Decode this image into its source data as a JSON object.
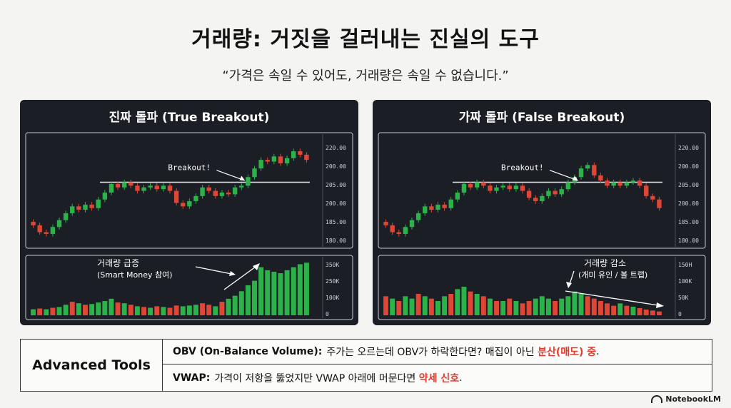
{
  "title": "거래량: 거짓을 걸러내는 진실의 도구",
  "quote": "“가격은 속일 수 있어도, 거래량은 속일 수 없습니다.”",
  "colors": {
    "up": "#2bb34a",
    "down": "#e04636",
    "panel_bg": "#1b1e25",
    "accent_text": "#e23b2e"
  },
  "chart_data": [
    {
      "type": "candlestick",
      "title": "진짜 돌파 (True Breakout)",
      "price_ticks": [
        "220.00",
        "200.00",
        "205.00",
        "200.00",
        "185.00",
        "180.00"
      ],
      "volume_ticks": [
        "350K",
        "250K",
        "100K",
        "0"
      ],
      "resistance_label": "Breakout!",
      "volume_annotation": [
        "거래량 급증",
        "(Smart Money 참여)"
      ],
      "candles": [
        [
          178,
          176
        ],
        [
          176,
          172
        ],
        [
          172,
          171
        ],
        [
          171,
          175
        ],
        [
          175,
          179
        ],
        [
          179,
          183
        ],
        [
          183,
          187
        ],
        [
          187,
          185
        ],
        [
          185,
          188
        ],
        [
          188,
          186
        ],
        [
          186,
          191
        ],
        [
          191,
          195
        ],
        [
          195,
          200
        ],
        [
          200,
          198
        ],
        [
          198,
          201
        ],
        [
          201,
          199
        ],
        [
          199,
          196
        ],
        [
          196,
          198
        ],
        [
          198,
          199
        ],
        [
          199,
          197
        ],
        [
          197,
          199
        ],
        [
          199,
          196
        ],
        [
          196,
          189
        ],
        [
          189,
          187
        ],
        [
          187,
          190
        ],
        [
          190,
          193
        ],
        [
          193,
          198
        ],
        [
          198,
          196
        ],
        [
          196,
          193
        ],
        [
          193,
          195
        ],
        [
          195,
          194
        ],
        [
          194,
          198
        ],
        [
          198,
          199
        ],
        [
          199,
          204
        ],
        [
          204,
          209
        ],
        [
          209,
          214
        ],
        [
          214,
          213
        ],
        [
          213,
          216
        ],
        [
          216,
          212
        ],
        [
          212,
          215
        ],
        [
          215,
          219
        ],
        [
          219,
          217
        ],
        [
          217,
          214
        ]
      ],
      "volumes": [
        [
          40,
          "up"
        ],
        [
          45,
          "down"
        ],
        [
          40,
          "up"
        ],
        [
          50,
          "down"
        ],
        [
          55,
          "up"
        ],
        [
          70,
          "up"
        ],
        [
          90,
          "down"
        ],
        [
          80,
          "up"
        ],
        [
          70,
          "down"
        ],
        [
          75,
          "up"
        ],
        [
          85,
          "up"
        ],
        [
          95,
          "up"
        ],
        [
          110,
          "up"
        ],
        [
          85,
          "down"
        ],
        [
          80,
          "up"
        ],
        [
          70,
          "down"
        ],
        [
          60,
          "up"
        ],
        [
          55,
          "down"
        ],
        [
          50,
          "up"
        ],
        [
          60,
          "down"
        ],
        [
          55,
          "up"
        ],
        [
          50,
          "down"
        ],
        [
          65,
          "down"
        ],
        [
          60,
          "up"
        ],
        [
          65,
          "up"
        ],
        [
          70,
          "up"
        ],
        [
          80,
          "down"
        ],
        [
          70,
          "down"
        ],
        [
          60,
          "up"
        ],
        [
          90,
          "down"
        ],
        [
          110,
          "up"
        ],
        [
          130,
          "up"
        ],
        [
          160,
          "up"
        ],
        [
          200,
          "up"
        ],
        [
          230,
          "up"
        ],
        [
          320,
          "up"
        ],
        [
          300,
          "up"
        ],
        [
          290,
          "up"
        ],
        [
          280,
          "up"
        ],
        [
          300,
          "up"
        ],
        [
          320,
          "up"
        ],
        [
          340,
          "up"
        ],
        [
          350,
          "up"
        ]
      ],
      "volume_trend": "up"
    },
    {
      "type": "candlestick",
      "title": "가짜 돌파 (False Breakout)",
      "price_ticks": [
        "220.00",
        "200.00",
        "205.00",
        "200.00",
        "185.00",
        "180.00"
      ],
      "volume_ticks": [
        "150H",
        "100K",
        "50K",
        "0"
      ],
      "resistance_label": "Breakout!",
      "volume_annotation": [
        "거래량 감소",
        "(개미 유인 / 볼 트랩)"
      ],
      "candles": [
        [
          178,
          176
        ],
        [
          176,
          172
        ],
        [
          172,
          171
        ],
        [
          171,
          175
        ],
        [
          175,
          179
        ],
        [
          179,
          183
        ],
        [
          183,
          187
        ],
        [
          187,
          185
        ],
        [
          185,
          188
        ],
        [
          188,
          186
        ],
        [
          186,
          191
        ],
        [
          191,
          195
        ],
        [
          195,
          200
        ],
        [
          200,
          198
        ],
        [
          198,
          201
        ],
        [
          201,
          199
        ],
        [
          199,
          196
        ],
        [
          196,
          198
        ],
        [
          198,
          199
        ],
        [
          199,
          197
        ],
        [
          197,
          199
        ],
        [
          199,
          196
        ],
        [
          196,
          192
        ],
        [
          192,
          190
        ],
        [
          190,
          193
        ],
        [
          193,
          196
        ],
        [
          196,
          194
        ],
        [
          194,
          197
        ],
        [
          197,
          201
        ],
        [
          201,
          204
        ],
        [
          204,
          209
        ],
        [
          209,
          211
        ],
        [
          211,
          205
        ],
        [
          205,
          202
        ],
        [
          202,
          199
        ],
        [
          199,
          201
        ],
        [
          201,
          199
        ],
        [
          199,
          201
        ],
        [
          201,
          202
        ],
        [
          202,
          199
        ],
        [
          199,
          193
        ],
        [
          193,
          191
        ],
        [
          191,
          186
        ]
      ],
      "volumes": [
        [
          40,
          "down"
        ],
        [
          35,
          "up"
        ],
        [
          30,
          "down"
        ],
        [
          40,
          "up"
        ],
        [
          35,
          "up"
        ],
        [
          45,
          "down"
        ],
        [
          40,
          "up"
        ],
        [
          35,
          "down"
        ],
        [
          30,
          "up"
        ],
        [
          40,
          "up"
        ],
        [
          45,
          "down"
        ],
        [
          55,
          "up"
        ],
        [
          60,
          "up"
        ],
        [
          50,
          "down"
        ],
        [
          45,
          "up"
        ],
        [
          40,
          "down"
        ],
        [
          35,
          "up"
        ],
        [
          30,
          "down"
        ],
        [
          30,
          "up"
        ],
        [
          35,
          "down"
        ],
        [
          30,
          "up"
        ],
        [
          25,
          "down"
        ],
        [
          30,
          "down"
        ],
        [
          35,
          "up"
        ],
        [
          40,
          "up"
        ],
        [
          35,
          "up"
        ],
        [
          30,
          "down"
        ],
        [
          35,
          "up"
        ],
        [
          40,
          "up"
        ],
        [
          50,
          "up"
        ],
        [
          45,
          "up"
        ],
        [
          40,
          "down"
        ],
        [
          35,
          "down"
        ],
        [
          30,
          "down"
        ],
        [
          25,
          "down"
        ],
        [
          20,
          "down"
        ],
        [
          25,
          "up"
        ],
        [
          20,
          "down"
        ],
        [
          18,
          "up"
        ],
        [
          15,
          "down"
        ],
        [
          12,
          "down"
        ],
        [
          10,
          "down"
        ],
        [
          8,
          "down"
        ]
      ],
      "volume_trend": "down"
    }
  ],
  "tools": {
    "label": "Advanced Tools",
    "rows": [
      {
        "name": "OBV (On-Balance Volume):",
        "text": "주가는 오르는데 OBV가 하락한다면? 매집이 아닌",
        "highlight": "분산(매도) 중",
        "tail": "."
      },
      {
        "name": "VWAP:",
        "text": "가격이 저항을 뚫었지만 VWAP 아래에 머문다면",
        "highlight": "약세 신호",
        "tail": "."
      }
    ]
  },
  "brand": "NotebookLM"
}
